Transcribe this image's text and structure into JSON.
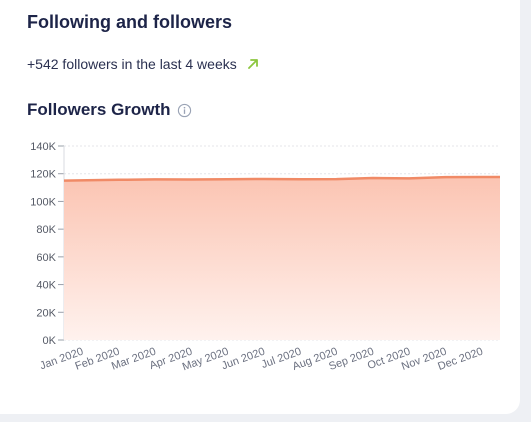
{
  "section": {
    "title": "Following and followers",
    "followers_change_text": "+542 followers in the last 4 weeks"
  },
  "growth": {
    "title": "Followers Growth"
  },
  "colors": {
    "line": "#f08a66",
    "fill_top": "#fbc4b2",
    "fill_bottom": "#fff2ee",
    "trend_up": "#8cc63f",
    "info": "#9aa3b5"
  },
  "chart_data": {
    "type": "area",
    "x": [
      "Jan 2020",
      "Feb 2020",
      "Mar 2020",
      "Apr 2020",
      "May 2020",
      "Jun 2020",
      "Jul 2020",
      "Aug 2020",
      "Sep 2020",
      "Oct 2020",
      "Nov 2020",
      "Dec 2020"
    ],
    "series": [
      {
        "values": [
          115000,
          115600,
          115900,
          115800,
          116000,
          116200,
          116000,
          116100,
          116900,
          116600,
          117500,
          117600
        ]
      }
    ],
    "ylim": [
      0,
      140000
    ],
    "yticks": [
      "0K",
      "20K",
      "40K",
      "60K",
      "80K",
      "100K",
      "120K",
      "140K"
    ],
    "grid": true,
    "legend": "none"
  }
}
